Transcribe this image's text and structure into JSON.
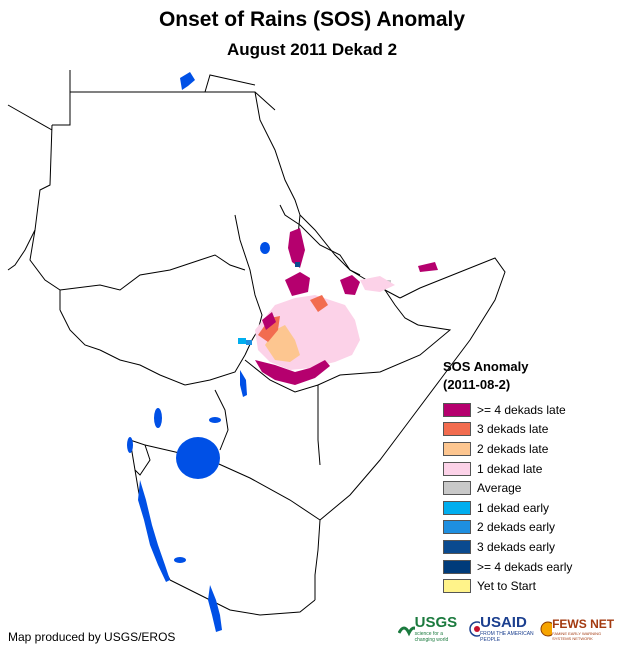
{
  "title": "Onset of Rains (SOS) Anomaly",
  "subtitle": "August 2011 Dekad 2",
  "legend": {
    "title": "SOS Anomaly",
    "period": "(2011-08-2)",
    "items": [
      {
        "label": ">= 4 dekads late",
        "color": "#b5006e"
      },
      {
        "label": "3 dekads late",
        "color": "#f26c4f"
      },
      {
        "label": "2 dekads late",
        "color": "#fdc690"
      },
      {
        "label": "1 dekad late",
        "color": "#fcd2e8"
      },
      {
        "label": "Average",
        "color": "#c8c8c8"
      },
      {
        "label": "1 dekad early",
        "color": "#00aeef"
      },
      {
        "label": "2 dekads early",
        "color": "#1e8fe0"
      },
      {
        "label": "3 dekads early",
        "color": "#0a4a8f"
      },
      {
        "label": ">= 4 dekads early",
        "color": "#003b7a"
      },
      {
        "label": "Yet to Start",
        "color": "#fff38a"
      }
    ]
  },
  "credit": "Map produced by USGS/EROS",
  "logos": {
    "usgs": "USGS",
    "usgs_tagline": "science for a changing world",
    "usaid": "USAID",
    "usaid_tagline": "FROM THE AMERICAN PEOPLE",
    "fewsnet": "FEWS NET",
    "fewsnet_tagline": "FAMINE EARLY WARNING SYSTEMS NETWORK"
  },
  "colors": {
    "water": "#0050e6",
    "border": "#000000"
  }
}
